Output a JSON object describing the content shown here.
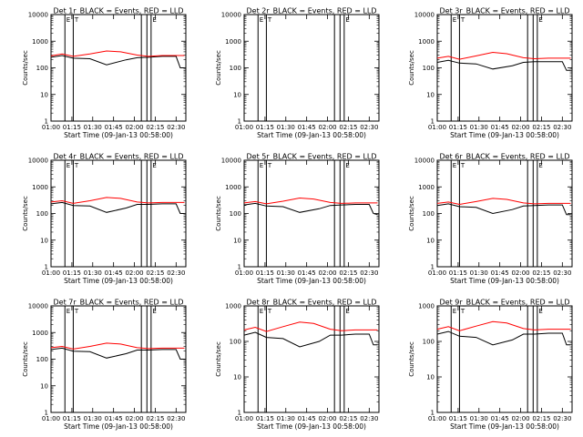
{
  "chart_data": [
    {
      "type": "line",
      "title": "Det 1r_BLACK = Events, RED = LLD",
      "ylabel": "Counts/sec",
      "xlabel": "Start Time (09-Jan-13 00:58:00)",
      "yscale": "log",
      "ylim": [
        1,
        10000
      ],
      "xlim": [
        "01:00",
        "02:37"
      ],
      "xticks": [
        "01:00",
        "01:15",
        "01:30",
        "01:45",
        "02:00",
        "02:15",
        "02:30"
      ],
      "yticks": [
        "1",
        "10",
        "100",
        "1000",
        "10000"
      ],
      "markers": [
        {
          "x": "01:10",
          "label": "E"
        },
        {
          "x": "01:16",
          "label": "T"
        },
        {
          "x": "02:05",
          "label": ""
        },
        {
          "x": "02:09",
          "label": ""
        },
        {
          "x": "02:12",
          "label": "E"
        }
      ],
      "series": [
        {
          "name": "Events",
          "color": "#000000",
          "x": [
            "01:00",
            "01:08",
            "01:16",
            "01:28",
            "01:40",
            "01:54",
            "02:02",
            "02:10",
            "02:20",
            "02:30",
            "02:33",
            "02:36"
          ],
          "values": [
            250,
            290,
            230,
            220,
            130,
            200,
            240,
            250,
            270,
            270,
            100,
            100
          ]
        },
        {
          "name": "LLD",
          "color": "#ff0000",
          "x": [
            "01:00",
            "01:08",
            "01:16",
            "01:28",
            "01:40",
            "01:50",
            "02:02",
            "02:10",
            "02:20",
            "02:30",
            "02:36"
          ],
          "values": [
            280,
            330,
            270,
            330,
            430,
            400,
            300,
            270,
            290,
            290,
            290
          ]
        }
      ]
    },
    {
      "type": "line",
      "title": "Det 2r_BLACK = Events, RED = LLD",
      "ylabel": "Counts/sec",
      "xlabel": "Start Time (09-Jan-13 00:58:00)",
      "yscale": "log",
      "ylim": [
        1,
        10000
      ],
      "xlim": [
        "01:00",
        "02:37"
      ],
      "xticks": [
        "01:00",
        "01:15",
        "01:30",
        "01:45",
        "02:00",
        "02:15",
        "02:30"
      ],
      "yticks": [
        "1",
        "10",
        "100",
        "1000",
        "10000"
      ],
      "markers": [
        {
          "x": "01:10",
          "label": "E"
        },
        {
          "x": "01:16",
          "label": "T"
        },
        {
          "x": "02:05",
          "label": ""
        },
        {
          "x": "02:09",
          "label": ""
        },
        {
          "x": "02:12",
          "label": "E"
        }
      ],
      "series": []
    },
    {
      "type": "line",
      "title": "Det 3r_BLACK = Events, RED = LLD",
      "ylabel": "Counts/sec",
      "xlabel": "Start Time (09-Jan-13 00:58:00)",
      "yscale": "log",
      "ylim": [
        1,
        10000
      ],
      "xlim": [
        "01:00",
        "02:37"
      ],
      "xticks": [
        "01:00",
        "01:15",
        "01:30",
        "01:45",
        "02:00",
        "02:15",
        "02:30"
      ],
      "yticks": [
        "1",
        "10",
        "100",
        "1000",
        "10000"
      ],
      "markers": [
        {
          "x": "01:10",
          "label": "E"
        },
        {
          "x": "01:16",
          "label": "T"
        },
        {
          "x": "02:05",
          "label": ""
        },
        {
          "x": "02:09",
          "label": ""
        },
        {
          "x": "02:12",
          "label": "E"
        }
      ],
      "series": [
        {
          "name": "Events",
          "color": "#000000",
          "x": [
            "01:00",
            "01:08",
            "01:16",
            "01:28",
            "01:40",
            "01:54",
            "02:02",
            "02:10",
            "02:20",
            "02:30",
            "02:33",
            "02:36"
          ],
          "values": [
            160,
            190,
            150,
            140,
            90,
            120,
            160,
            170,
            170,
            170,
            80,
            80
          ]
        },
        {
          "name": "LLD",
          "color": "#ff0000",
          "x": [
            "01:00",
            "01:08",
            "01:16",
            "01:28",
            "01:40",
            "01:50",
            "02:02",
            "02:10",
            "02:20",
            "02:30",
            "02:36"
          ],
          "values": [
            230,
            270,
            210,
            280,
            380,
            340,
            240,
            220,
            230,
            230,
            230
          ]
        }
      ]
    },
    {
      "type": "line",
      "title": "Det 4r_BLACK = Events, RED = LLD",
      "ylabel": "Counts/sec",
      "xlabel": "Start Time (09-Jan-13 00:58:00)",
      "yscale": "log",
      "ylim": [
        1,
        10000
      ],
      "xlim": [
        "01:00",
        "02:37"
      ],
      "xticks": [
        "01:00",
        "01:15",
        "01:30",
        "01:45",
        "02:00",
        "02:15",
        "02:30"
      ],
      "yticks": [
        "1",
        "10",
        "100",
        "1000",
        "10000"
      ],
      "markers": [
        {
          "x": "01:10",
          "label": "E"
        },
        {
          "x": "01:16",
          "label": "T"
        },
        {
          "x": "02:05",
          "label": ""
        },
        {
          "x": "02:09",
          "label": ""
        },
        {
          "x": "02:12",
          "label": "E"
        }
      ],
      "series": [
        {
          "name": "Events",
          "color": "#000000",
          "x": [
            "01:00",
            "01:08",
            "01:16",
            "01:28",
            "01:40",
            "01:54",
            "02:02",
            "02:10",
            "02:20",
            "02:30",
            "02:33",
            "02:36"
          ],
          "values": [
            230,
            260,
            200,
            190,
            110,
            160,
            220,
            220,
            230,
            230,
            100,
            100
          ]
        },
        {
          "name": "LLD",
          "color": "#ff0000",
          "x": [
            "01:00",
            "01:08",
            "01:16",
            "01:28",
            "01:40",
            "01:50",
            "02:02",
            "02:10",
            "02:20",
            "02:30",
            "02:36"
          ],
          "values": [
            270,
            300,
            240,
            300,
            400,
            370,
            270,
            250,
            260,
            260,
            260
          ]
        }
      ]
    },
    {
      "type": "line",
      "title": "Det 5r_BLACK = Events, RED = LLD",
      "ylabel": "Counts/sec",
      "xlabel": "Start Time (09-Jan-13 00:58:00)",
      "yscale": "log",
      "ylim": [
        1,
        10000
      ],
      "xlim": [
        "01:00",
        "02:37"
      ],
      "xticks": [
        "01:00",
        "01:15",
        "01:30",
        "01:45",
        "02:00",
        "02:15",
        "02:30"
      ],
      "yticks": [
        "1",
        "10",
        "100",
        "1000",
        "10000"
      ],
      "markers": [
        {
          "x": "01:10",
          "label": "E"
        },
        {
          "x": "01:16",
          "label": "T"
        },
        {
          "x": "02:05",
          "label": ""
        },
        {
          "x": "02:09",
          "label": ""
        },
        {
          "x": "02:12",
          "label": "E"
        }
      ],
      "series": [
        {
          "name": "Events",
          "color": "#000000",
          "x": [
            "01:00",
            "01:08",
            "01:16",
            "01:28",
            "01:40",
            "01:54",
            "02:02",
            "02:10",
            "02:20",
            "02:30",
            "02:33",
            "02:36"
          ],
          "values": [
            210,
            240,
            190,
            180,
            110,
            150,
            200,
            210,
            220,
            220,
            100,
            90
          ]
        },
        {
          "name": "LLD",
          "color": "#ff0000",
          "x": [
            "01:00",
            "01:08",
            "01:16",
            "01:28",
            "01:40",
            "01:50",
            "02:02",
            "02:10",
            "02:20",
            "02:30",
            "02:36"
          ],
          "values": [
            250,
            280,
            230,
            290,
            380,
            350,
            260,
            240,
            250,
            250,
            250
          ]
        }
      ]
    },
    {
      "type": "line",
      "title": "Det 6r_BLACK = Events, RED = LLD",
      "ylabel": "Counts/sec",
      "xlabel": "Start Time (09-Jan-13 00:58:00)",
      "yscale": "log",
      "ylim": [
        1,
        10000
      ],
      "xlim": [
        "01:00",
        "02:37"
      ],
      "xticks": [
        "01:00",
        "01:15",
        "01:30",
        "01:45",
        "02:00",
        "02:15",
        "02:30"
      ],
      "yticks": [
        "1",
        "10",
        "100",
        "1000",
        "10000"
      ],
      "markers": [
        {
          "x": "01:10",
          "label": "E"
        },
        {
          "x": "01:16",
          "label": "T"
        },
        {
          "x": "02:05",
          "label": ""
        },
        {
          "x": "02:09",
          "label": ""
        },
        {
          "x": "02:12",
          "label": "E"
        }
      ],
      "series": [
        {
          "name": "Events",
          "color": "#000000",
          "x": [
            "01:00",
            "01:08",
            "01:16",
            "01:28",
            "01:40",
            "01:54",
            "02:02",
            "02:10",
            "02:20",
            "02:30",
            "02:33",
            "02:36"
          ],
          "values": [
            200,
            230,
            180,
            170,
            100,
            140,
            190,
            200,
            210,
            210,
            90,
            90
          ]
        },
        {
          "name": "LLD",
          "color": "#ff0000",
          "x": [
            "01:00",
            "01:08",
            "01:16",
            "01:28",
            "01:40",
            "01:50",
            "02:02",
            "02:10",
            "02:20",
            "02:30",
            "02:36"
          ],
          "values": [
            240,
            270,
            220,
            280,
            370,
            340,
            250,
            230,
            240,
            240,
            240
          ]
        }
      ]
    },
    {
      "type": "line",
      "title": "Det 7r_BLACK = Events, RED = LLD",
      "ylabel": "Counts/sec",
      "xlabel": "Start Time (09-Jan-13 00:58:00)",
      "yscale": "log",
      "ylim": [
        1,
        10000
      ],
      "xlim": [
        "01:00",
        "02:37"
      ],
      "xticks": [
        "01:00",
        "01:15",
        "01:30",
        "01:45",
        "02:00",
        "02:15",
        "02:30"
      ],
      "yticks": [
        "1",
        "10",
        "100",
        "1000",
        "10000"
      ],
      "markers": [
        {
          "x": "01:10",
          "label": "E"
        },
        {
          "x": "01:16",
          "label": "T"
        },
        {
          "x": "02:05",
          "label": ""
        },
        {
          "x": "02:09",
          "label": ""
        },
        {
          "x": "02:12",
          "label": "E"
        }
      ],
      "series": [
        {
          "name": "Events",
          "color": "#000000",
          "x": [
            "01:00",
            "01:08",
            "01:16",
            "01:28",
            "01:40",
            "01:54",
            "02:02",
            "02:10",
            "02:20",
            "02:30",
            "02:33",
            "02:36"
          ],
          "values": [
            230,
            260,
            200,
            190,
            110,
            160,
            220,
            220,
            230,
            230,
            100,
            100
          ]
        },
        {
          "name": "LLD",
          "color": "#ff0000",
          "x": [
            "01:00",
            "01:08",
            "01:16",
            "01:28",
            "01:40",
            "01:50",
            "02:02",
            "02:10",
            "02:20",
            "02:30",
            "02:36"
          ],
          "values": [
            270,
            300,
            240,
            300,
            400,
            370,
            270,
            250,
            260,
            260,
            260
          ]
        }
      ]
    },
    {
      "type": "line",
      "title": "Det 8r_BLACK = Events, RED = LLD",
      "ylabel": "Counts/sec",
      "xlabel": "Start Time (09-Jan-13 00:58:00)",
      "yscale": "log",
      "ylim": [
        1,
        1000
      ],
      "xlim": [
        "01:00",
        "02:37"
      ],
      "xticks": [
        "01:00",
        "01:15",
        "01:30",
        "01:45",
        "02:00",
        "02:15",
        "02:30"
      ],
      "yticks": [
        "1",
        "10",
        "100",
        "1000"
      ],
      "markers": [
        {
          "x": "01:10",
          "label": "E"
        },
        {
          "x": "01:16",
          "label": "T"
        },
        {
          "x": "02:05",
          "label": ""
        },
        {
          "x": "02:09",
          "label": ""
        },
        {
          "x": "02:12",
          "label": "E"
        }
      ],
      "series": [
        {
          "name": "Events",
          "color": "#000000",
          "x": [
            "01:00",
            "01:08",
            "01:16",
            "01:28",
            "01:40",
            "01:54",
            "02:02",
            "02:10",
            "02:20",
            "02:30",
            "02:33",
            "02:36"
          ],
          "values": [
            150,
            180,
            130,
            120,
            70,
            100,
            150,
            150,
            160,
            160,
            80,
            80
          ]
        },
        {
          "name": "LLD",
          "color": "#ff0000",
          "x": [
            "01:00",
            "01:08",
            "01:16",
            "01:28",
            "01:40",
            "01:50",
            "02:02",
            "02:10",
            "02:20",
            "02:30",
            "02:36"
          ],
          "values": [
            210,
            250,
            190,
            260,
            350,
            320,
            220,
            200,
            210,
            210,
            210
          ]
        }
      ]
    },
    {
      "type": "line",
      "title": "Det 9r_BLACK = Events, RED = LLD",
      "ylabel": "Counts/sec",
      "xlabel": "Start Time (09-Jan-13 00:58:00)",
      "yscale": "log",
      "ylim": [
        1,
        1000
      ],
      "xlim": [
        "01:00",
        "02:37"
      ],
      "xticks": [
        "01:00",
        "01:15",
        "01:30",
        "01:45",
        "02:00",
        "02:15",
        "02:30"
      ],
      "yticks": [
        "1",
        "10",
        "100",
        "1000"
      ],
      "markers": [
        {
          "x": "01:10",
          "label": "E"
        },
        {
          "x": "01:16",
          "label": "T"
        },
        {
          "x": "02:05",
          "label": ""
        },
        {
          "x": "02:09",
          "label": ""
        },
        {
          "x": "02:12",
          "label": "E"
        }
      ],
      "series": [
        {
          "name": "Events",
          "color": "#000000",
          "x": [
            "01:00",
            "01:08",
            "01:16",
            "01:28",
            "01:40",
            "01:54",
            "02:02",
            "02:10",
            "02:20",
            "02:30",
            "02:33",
            "02:36"
          ],
          "values": [
            160,
            190,
            140,
            130,
            80,
            110,
            160,
            160,
            170,
            170,
            80,
            80
          ]
        },
        {
          "name": "LLD",
          "color": "#ff0000",
          "x": [
            "01:00",
            "01:08",
            "01:16",
            "01:28",
            "01:40",
            "01:50",
            "02:02",
            "02:10",
            "02:20",
            "02:30",
            "02:36"
          ],
          "values": [
            220,
            260,
            200,
            270,
            360,
            330,
            230,
            210,
            220,
            220,
            220
          ]
        }
      ]
    }
  ]
}
